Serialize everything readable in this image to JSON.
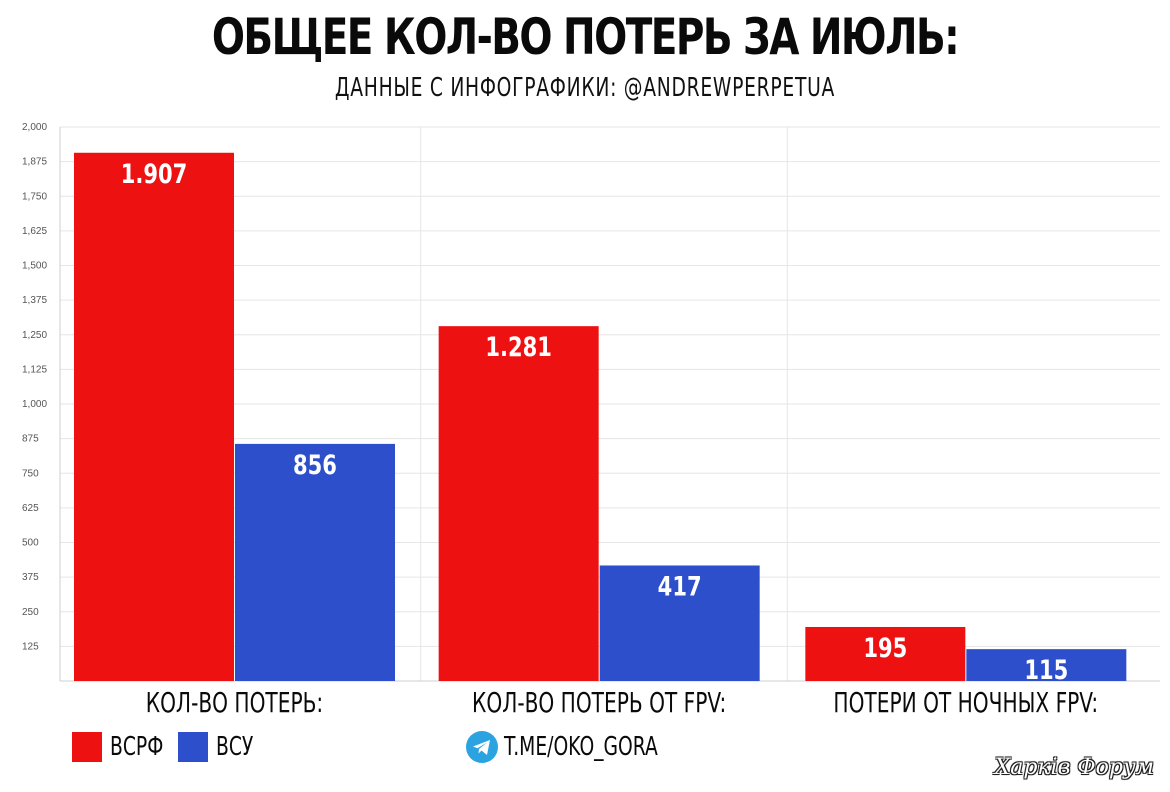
{
  "header": {
    "title": "ОБЩЕЕ КОЛ-ВО ПОТЕРЬ ЗА ИЮЛЬ:",
    "subtitle": "ДАННЫЕ С ИНФОГРАФИКИ: @ANDREWPERPETUA"
  },
  "legend": [
    {
      "label": "ВСРФ",
      "color": "#ee1111"
    },
    {
      "label": "ВСУ",
      "color": "#2d4fcc"
    }
  ],
  "channel": {
    "label": "T.ME/OKO_GORA",
    "icon": "telegram-icon"
  },
  "watermark": "Харків Форум",
  "chart_data": {
    "type": "bar",
    "categories": [
      "КОЛ-ВО ПОТЕРЬ:",
      "КОЛ-ВО ПОТЕРЬ ОТ FPV:",
      "ПОТЕРИ ОТ НОЧНЫХ FPV:"
    ],
    "series": [
      {
        "name": "ВСРФ",
        "color": "#ee1111",
        "values": [
          1907,
          1281,
          195
        ],
        "labels": [
          "1.907",
          "1.281",
          "195"
        ]
      },
      {
        "name": "ВСУ",
        "color": "#2d4fcc",
        "values": [
          856,
          417,
          115
        ],
        "labels": [
          "856",
          "417",
          "115"
        ]
      }
    ],
    "yticks": [
      125,
      250,
      375,
      500,
      625,
      750,
      875,
      1000,
      1125,
      1250,
      1375,
      1500,
      1625,
      1750,
      1875,
      2000
    ],
    "ytick_labels": [
      "125",
      "250",
      "375",
      "500",
      "625",
      "750",
      "875",
      "1,000",
      "1,125",
      "1,250",
      "1,375",
      "1,500",
      "1,625",
      "1,750",
      "1,875",
      "2,000"
    ],
    "ylim": [
      0,
      2000
    ],
    "grid": true,
    "legend_position": "bottom-left"
  }
}
